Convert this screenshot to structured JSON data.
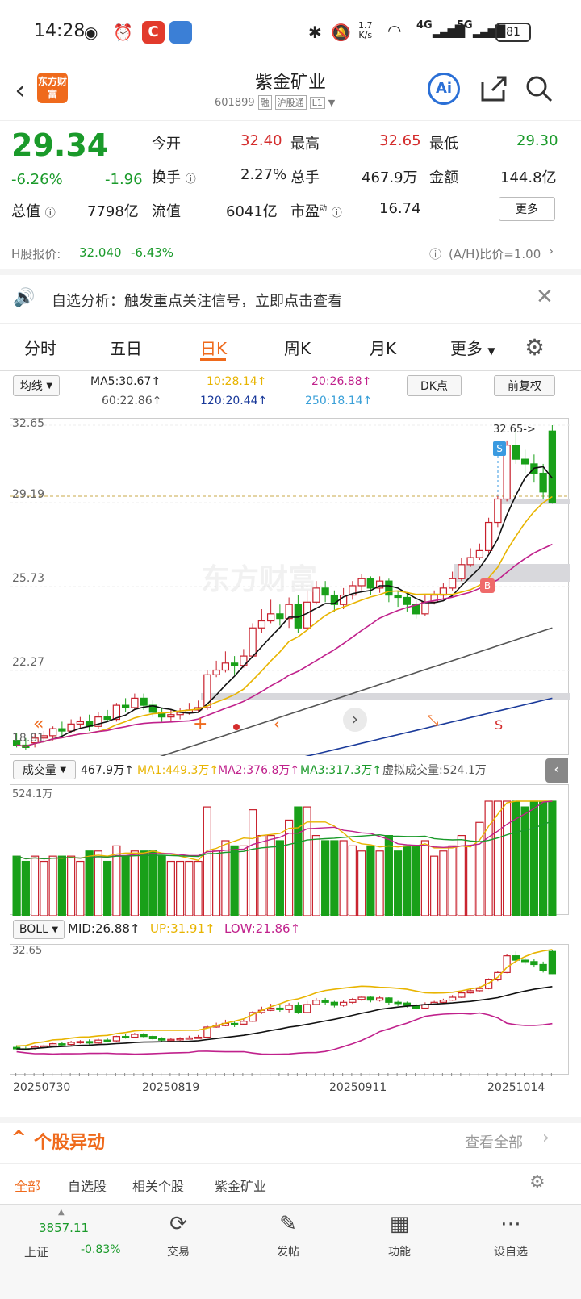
{
  "status_bar": {
    "time": "14:28",
    "net_speed_top": "1.7",
    "net_speed_unit": "K/s",
    "sig4g": "4G",
    "sig5g": "5G",
    "battery": "81"
  },
  "header": {
    "logo_text": "东方财富",
    "stock_name": "紫金矿业",
    "stock_code": "601899",
    "badges": [
      "融",
      "沪股通",
      "L1"
    ],
    "ai_label": "Ai"
  },
  "quote": {
    "price": "29.34",
    "change_pct": "-6.26%",
    "change": "-1.96",
    "rows": [
      [
        {
          "label": "今开",
          "value": "32.40",
          "tone": "red"
        },
        {
          "label": "最高",
          "value": "32.65",
          "tone": "red"
        },
        {
          "label": "最低",
          "value": "29.30",
          "tone": "green"
        }
      ],
      [
        {
          "label": "换手",
          "value": "2.27%",
          "tone": "dark"
        },
        {
          "label": "总手",
          "value": "467.9万",
          "tone": "dark"
        },
        {
          "label": "金额",
          "value": "144.8亿",
          "tone": "dark"
        }
      ],
      [
        {
          "label": "总值",
          "value": "7798亿",
          "tone": "dark"
        },
        {
          "label": "流值",
          "value": "6041亿",
          "tone": "dark"
        },
        {
          "label": "市盈",
          "value": "16.74",
          "tone": "dark"
        }
      ]
    ],
    "pe_superscript": "动",
    "more_button": "更多"
  },
  "hshare": {
    "label": "H股报价:",
    "price": "32.040",
    "pct": "-6.43%",
    "ratio": "(A/H)比价=1.00"
  },
  "notice": {
    "text": "自选分析：触发重点关注信号，立即点击查看"
  },
  "period_tabs": [
    "分时",
    "五日",
    "日K",
    "周K",
    "月K",
    "更多"
  ],
  "active_period": 2,
  "ma_bar": {
    "select": "均线",
    "ma5": "MA5:30.67↑",
    "ma10": "10:28.14↑",
    "ma20": "20:26.88↑",
    "ma60": "60:22.86↑",
    "ma120": "120:20.44↑",
    "ma250": "250:18.14↑",
    "dk_button": "DK点",
    "fq_button": "前复权"
  },
  "kchart": {
    "price_labels": [
      "32.65",
      "29.19",
      "25.73",
      "22.27"
    ],
    "bottom_label": "18.81",
    "high_tag": "32.65->",
    "sell_mark": "S",
    "buy_mark": "B",
    "watermark": "东方财富",
    "s_text": "S"
  },
  "vol_bar": {
    "select": "成交量",
    "vol": "467.9万↑",
    "ma1": "MA1:449.3万↑",
    "ma2": "MA2:376.8万↑",
    "ma3": "MA3:317.3万↑",
    "virtual": "虚拟成交量:524.1万",
    "max_label": "524.1万"
  },
  "boll_bar": {
    "select": "BOLL",
    "mid": "MID:26.88↑",
    "up": "UP:31.91↑",
    "low": "LOW:21.86↑",
    "max_label": "32.65"
  },
  "date_axis": [
    "20250730",
    "20250819",
    "20250911",
    "20251014"
  ],
  "movement": {
    "title": "个股异动",
    "view_all": "查看全部"
  },
  "sub_tabs": [
    "全部",
    "自选股",
    "相关个股",
    "紫金矿业"
  ],
  "bottom_nav": {
    "index_value": "3857.11",
    "index_name": "上证",
    "index_pct": "-0.83%",
    "items": [
      "交易",
      "发帖",
      "功能",
      "设自选"
    ]
  },
  "chart_data": {
    "type": "candlestick",
    "ylim": [
      18.81,
      32.65
    ],
    "candles": [
      [
        19.2,
        19.0,
        19.5,
        18.9
      ],
      [
        19.0,
        18.9,
        19.3,
        18.8
      ],
      [
        19.1,
        19.3,
        19.5,
        18.9
      ],
      [
        19.3,
        19.4,
        19.6,
        19.1
      ],
      [
        19.4,
        19.7,
        19.8,
        19.2
      ],
      [
        19.7,
        19.6,
        20.0,
        19.4
      ],
      [
        19.6,
        19.9,
        20.1,
        19.5
      ],
      [
        19.9,
        20.0,
        20.2,
        19.7
      ],
      [
        20.0,
        19.8,
        20.3,
        19.6
      ],
      [
        19.8,
        20.2,
        20.4,
        19.7
      ],
      [
        20.2,
        20.1,
        20.5,
        20.0
      ],
      [
        20.1,
        20.7,
        20.8,
        20.0
      ],
      [
        20.7,
        20.6,
        21.0,
        20.4
      ],
      [
        20.6,
        21.0,
        21.2,
        20.5
      ],
      [
        21.0,
        20.7,
        21.2,
        20.5
      ],
      [
        20.7,
        20.4,
        20.9,
        20.2
      ],
      [
        20.4,
        20.2,
        20.6,
        20.0
      ],
      [
        20.2,
        20.3,
        20.5,
        20.0
      ],
      [
        20.3,
        20.4,
        20.6,
        20.1
      ],
      [
        20.4,
        20.5,
        20.8,
        20.3
      ],
      [
        20.5,
        20.6,
        20.9,
        20.4
      ],
      [
        20.6,
        22.0,
        22.2,
        20.5
      ],
      [
        22.0,
        22.2,
        22.6,
        21.9
      ],
      [
        22.2,
        22.5,
        23.0,
        22.1
      ],
      [
        22.5,
        22.4,
        22.8,
        22.0
      ],
      [
        22.4,
        22.8,
        23.1,
        22.3
      ],
      [
        22.8,
        24.0,
        24.2,
        22.7
      ],
      [
        24.0,
        24.3,
        24.8,
        23.8
      ],
      [
        24.3,
        24.6,
        25.2,
        24.2
      ],
      [
        24.6,
        24.4,
        25.0,
        24.1
      ],
      [
        24.4,
        25.0,
        25.3,
        24.0
      ],
      [
        25.0,
        24.0,
        25.4,
        23.8
      ],
      [
        24.0,
        25.1,
        25.6,
        23.9
      ],
      [
        25.1,
        25.7,
        26.0,
        25.0
      ],
      [
        25.7,
        25.4,
        26.0,
        25.1
      ],
      [
        25.4,
        25.0,
        25.6,
        24.7
      ],
      [
        25.0,
        25.4,
        25.7,
        24.8
      ],
      [
        25.4,
        25.8,
        26.0,
        25.2
      ],
      [
        25.8,
        26.1,
        26.3,
        25.6
      ],
      [
        26.1,
        25.7,
        26.2,
        25.4
      ],
      [
        25.7,
        26.0,
        26.2,
        25.5
      ],
      [
        26.0,
        25.4,
        26.1,
        25.1
      ],
      [
        25.4,
        25.3,
        25.6,
        24.9
      ],
      [
        25.3,
        25.0,
        25.5,
        24.7
      ],
      [
        25.0,
        24.6,
        25.2,
        24.4
      ],
      [
        24.6,
        25.1,
        25.4,
        24.5
      ],
      [
        25.1,
        25.4,
        25.6,
        25.0
      ],
      [
        25.4,
        25.7,
        25.9,
        25.2
      ],
      [
        25.7,
        26.1,
        26.4,
        25.6
      ],
      [
        26.1,
        26.7,
        27.0,
        26.0
      ],
      [
        26.7,
        27.0,
        27.4,
        26.6
      ],
      [
        27.0,
        27.3,
        27.6,
        26.9
      ],
      [
        27.3,
        28.5,
        28.7,
        27.2
      ],
      [
        28.5,
        29.5,
        29.7,
        28.3
      ],
      [
        29.5,
        31.8,
        32.0,
        29.4
      ],
      [
        31.8,
        31.2,
        32.4,
        31.0
      ],
      [
        31.2,
        31.0,
        31.6,
        30.6
      ],
      [
        31.0,
        30.6,
        31.4,
        30.2
      ],
      [
        30.6,
        29.8,
        31.0,
        29.5
      ],
      [
        32.4,
        29.34,
        32.65,
        29.3
      ]
    ],
    "candle_note": "each candle is [open, close, high, low] in price units"
  }
}
